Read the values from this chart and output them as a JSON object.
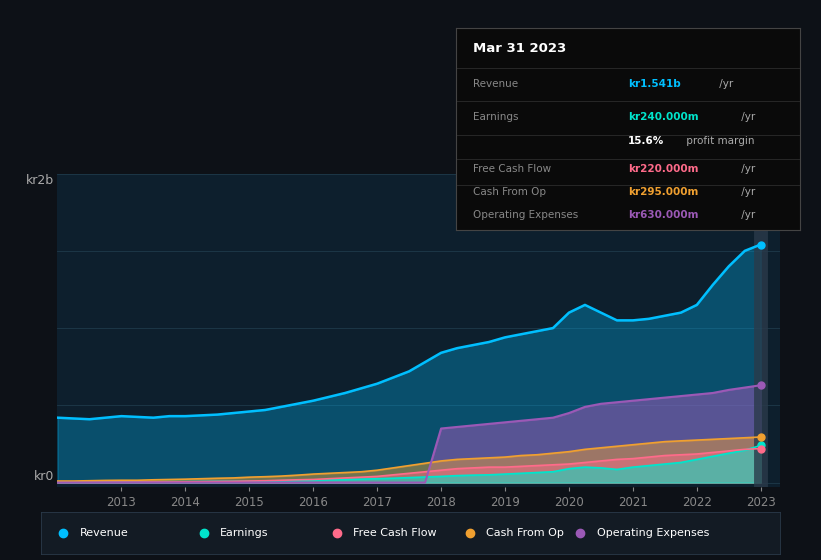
{
  "bg_color": "#0d1117",
  "chart_bg": "#0d1f2d",
  "grid_color": "#1e3a4a",
  "years": [
    2012,
    2012.25,
    2012.5,
    2012.75,
    2013,
    2013.25,
    2013.5,
    2013.75,
    2014,
    2014.25,
    2014.5,
    2014.75,
    2015,
    2015.25,
    2015.5,
    2015.75,
    2016,
    2016.25,
    2016.5,
    2016.75,
    2017,
    2017.25,
    2017.5,
    2017.75,
    2018,
    2018.25,
    2018.5,
    2018.75,
    2019,
    2019.25,
    2019.5,
    2019.75,
    2020,
    2020.25,
    2020.5,
    2020.75,
    2021,
    2021.25,
    2021.5,
    2021.75,
    2022,
    2022.25,
    2022.5,
    2022.75,
    2023
  ],
  "revenue": [
    420,
    415,
    410,
    420,
    430,
    425,
    420,
    430,
    430,
    435,
    440,
    450,
    460,
    470,
    490,
    510,
    530,
    555,
    580,
    610,
    640,
    680,
    720,
    780,
    840,
    870,
    890,
    910,
    940,
    960,
    980,
    1000,
    1100,
    1150,
    1100,
    1050,
    1050,
    1060,
    1080,
    1100,
    1150,
    1280,
    1400,
    1500,
    1541
  ],
  "earnings": [
    5,
    4,
    5,
    6,
    5,
    4,
    5,
    6,
    6,
    7,
    8,
    8,
    9,
    10,
    12,
    14,
    15,
    18,
    20,
    22,
    25,
    28,
    32,
    36,
    40,
    45,
    48,
    50,
    55,
    60,
    65,
    70,
    90,
    100,
    95,
    85,
    100,
    110,
    120,
    130,
    150,
    170,
    190,
    210,
    240
  ],
  "free_cash_flow": [
    2,
    2,
    3,
    3,
    3,
    3,
    4,
    4,
    5,
    6,
    7,
    8,
    10,
    12,
    15,
    18,
    20,
    25,
    30,
    35,
    40,
    50,
    60,
    70,
    80,
    90,
    95,
    100,
    100,
    105,
    110,
    115,
    120,
    130,
    140,
    150,
    155,
    165,
    175,
    180,
    185,
    195,
    205,
    215,
    220
  ],
  "cash_from_op": [
    10,
    10,
    12,
    14,
    15,
    15,
    18,
    20,
    22,
    25,
    28,
    30,
    35,
    38,
    42,
    48,
    55,
    60,
    65,
    70,
    80,
    95,
    110,
    125,
    140,
    150,
    155,
    160,
    165,
    175,
    180,
    190,
    200,
    215,
    225,
    235,
    245,
    255,
    265,
    270,
    275,
    280,
    285,
    290,
    295
  ],
  "operating_expenses": [
    0,
    0,
    0,
    0,
    0,
    0,
    0,
    0,
    0,
    0,
    0,
    0,
    0,
    0,
    0,
    0,
    0,
    0,
    0,
    0,
    0,
    0,
    0,
    0,
    350,
    360,
    370,
    380,
    390,
    400,
    410,
    420,
    450,
    490,
    510,
    520,
    530,
    540,
    550,
    560,
    570,
    580,
    600,
    615,
    630
  ],
  "xticks": [
    2013,
    2014,
    2015,
    2016,
    2017,
    2018,
    2019,
    2020,
    2021,
    2022,
    2023
  ],
  "revenue_color": "#00bfff",
  "earnings_color": "#00e5cc",
  "fcf_color": "#ff6b8a",
  "cop_color": "#f0a030",
  "opex_color": "#9b59b6",
  "tooltip_bg": "#0a0a0a",
  "tooltip_title": "Mar 31 2023",
  "tooltip_revenue": "kr1.541b",
  "tooltip_earnings": "kr240.000m",
  "tooltip_margin": "15.6%",
  "tooltip_fcf": "kr220.000m",
  "tooltip_cop": "kr295.000m",
  "tooltip_opex": "kr630.000m",
  "legend_labels": [
    "Revenue",
    "Earnings",
    "Free Cash Flow",
    "Cash From Op",
    "Operating Expenses"
  ]
}
